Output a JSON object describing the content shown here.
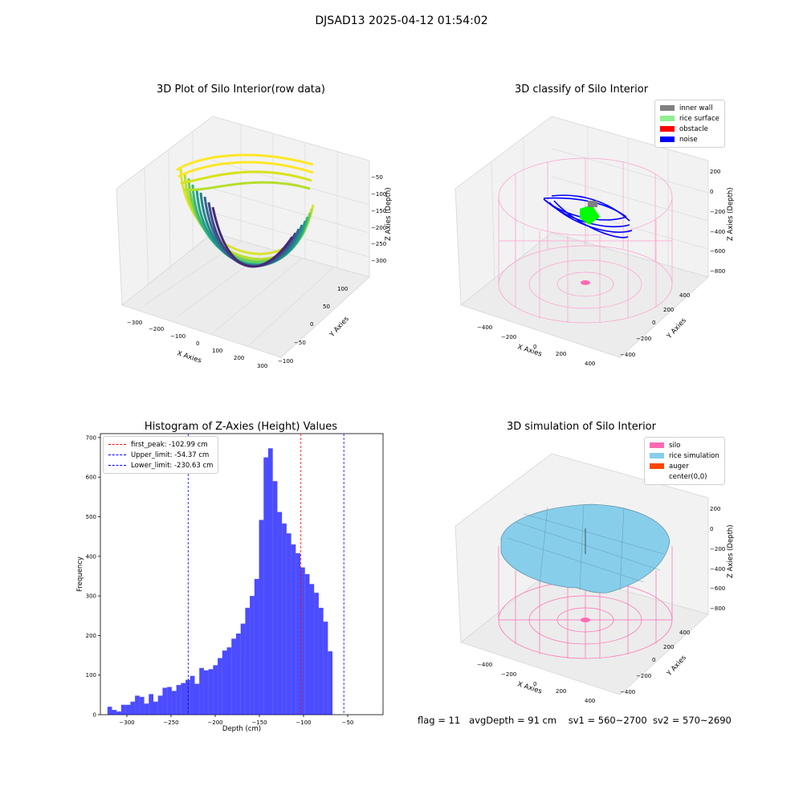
{
  "figure": {
    "suptitle": "DJSAD13 2025-04-12 01:54:02"
  },
  "panels": {
    "raw3d": {
      "title": "3D Plot of Silo Interior(row data)",
      "xlabel": "X Axies",
      "ylabel": "Y Axies",
      "zlabel": "Z Axies (Depth)",
      "xticks": [
        "−300",
        "−200",
        "−100",
        "0",
        "100",
        "200",
        "300"
      ],
      "yticks": [
        "100",
        "50",
        "0",
        "−50",
        "−100"
      ],
      "zticks": [
        "−50",
        "−100",
        "−150",
        "−200",
        "−250",
        "−300"
      ]
    },
    "classify3d": {
      "title": "3D classify of Silo Interior",
      "xlabel": "X Axies",
      "ylabel": "Y Axies",
      "zlabel": "Z Axies (Depth)",
      "xticks": [
        "−400",
        "−200",
        "0",
        "200",
        "400"
      ],
      "yticks": [
        "400",
        "200",
        "0",
        "−200",
        "−400"
      ],
      "zticks": [
        "200",
        "0",
        "−200",
        "−400",
        "−600",
        "−800"
      ],
      "legend": [
        {
          "label": "inner wall",
          "color": "#808080"
        },
        {
          "label": "rice surface",
          "color": "#90ee90"
        },
        {
          "label": "obstacle",
          "color": "#ff0000"
        },
        {
          "label": "noise",
          "color": "#0000ff"
        }
      ]
    },
    "sim3d": {
      "title": "3D simulation of Silo Interior",
      "xlabel": "X Axies",
      "ylabel": "Y Axies",
      "zlabel": "Z Axies (Depth)",
      "xticks": [
        "−400",
        "−200",
        "0",
        "200",
        "400"
      ],
      "yticks": [
        "400",
        "200",
        "0",
        "−200",
        "−400"
      ],
      "zticks": [
        "200",
        "0",
        "−200",
        "−400",
        "−600",
        "−800"
      ],
      "legend": [
        {
          "label": "silo",
          "color": "#ff69b4"
        },
        {
          "label": "rice simulation",
          "color": "#87ceeb"
        },
        {
          "label": "auger",
          "color": "#ff4500"
        },
        {
          "label": "center(0,0)",
          "color": "#ffffff"
        }
      ]
    }
  },
  "chart_data": {
    "type": "bar",
    "title": "Histogram of Z-Axies (Height) Values",
    "xlabel": "Depth (cm)",
    "ylabel": "Frequency",
    "xlim": [
      -330,
      -10
    ],
    "ylim": [
      0,
      710
    ],
    "xticks": [
      -300,
      -250,
      -200,
      -150,
      -100,
      -50
    ],
    "xtick_labels": [
      "−300",
      "−250",
      "−200",
      "−150",
      "−100",
      "−50"
    ],
    "yticks": [
      0,
      100,
      200,
      300,
      400,
      500,
      600,
      700
    ],
    "bin_start": -322,
    "bin_width": 5.2,
    "values": [
      20,
      12,
      8,
      25,
      25,
      33,
      48,
      45,
      28,
      52,
      33,
      48,
      68,
      70,
      60,
      75,
      80,
      88,
      98,
      78,
      118,
      112,
      115,
      125,
      143,
      162,
      170,
      192,
      205,
      230,
      270,
      300,
      343,
      492,
      650,
      673,
      590,
      512,
      483,
      458,
      430,
      408,
      372,
      355,
      330,
      308,
      270,
      235,
      160
    ],
    "bar_color": "#0000ff",
    "vlines": [
      {
        "label": "first_peak: -102.99 cm",
        "x": -102.99,
        "color": "#ff0000"
      },
      {
        "label": "Upper_limit: -54.37 cm",
        "x": -54.37,
        "color": "#0000ff"
      },
      {
        "label": "Lower_limit: -230.63 cm",
        "x": -230.63,
        "color": "#0000ff"
      }
    ]
  },
  "footer": {
    "flag": "flag = 11",
    "avg": "avgDepth = 91 cm",
    "sv1": "sv1 = 560~2700",
    "sv2": "sv2 = 570~2690"
  }
}
